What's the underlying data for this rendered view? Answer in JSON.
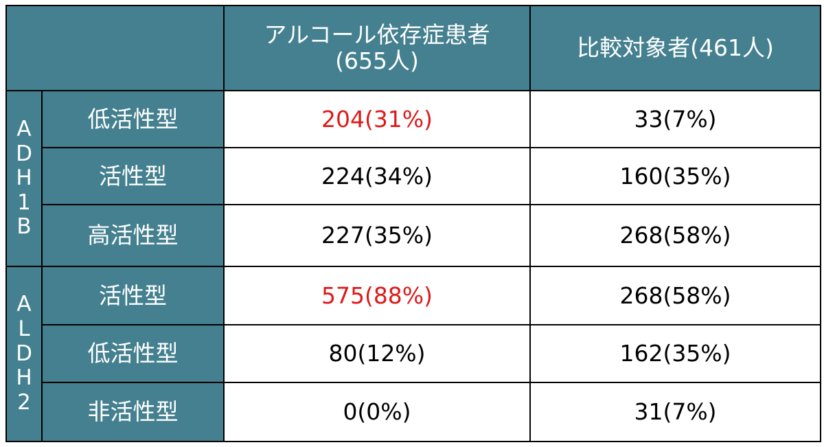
{
  "colors": {
    "header_bg": "#44808f",
    "header_text": "#ffffff",
    "highlight_text": "#dd1a1a",
    "cell_text": "#000000",
    "border": "#000000"
  },
  "chart_data": {
    "type": "table",
    "columns": [
      "",
      "アルコール依存症患者(655人)",
      "比較対象者(461人)"
    ],
    "column_lines": [
      [
        ""
      ],
      [
        "アルコール依存症患者",
        "(655人)"
      ],
      [
        "比較対象者(461人)"
      ]
    ],
    "groups": [
      {
        "name": "ADH1B",
        "letters": [
          "A",
          "D",
          "H",
          "1",
          "B"
        ],
        "rows": [
          {
            "label": "低活性型",
            "values": [
              "204(31%)",
              "33(7%)"
            ],
            "highlight": [
              true,
              false
            ]
          },
          {
            "label": "活性型",
            "values": [
              "224(34%)",
              "160(35%)"
            ],
            "highlight": [
              false,
              false
            ]
          },
          {
            "label": "高活性型",
            "values": [
              "227(35%)",
              "268(58%)"
            ],
            "highlight": [
              false,
              false
            ]
          }
        ]
      },
      {
        "name": "ALDH2",
        "letters": [
          "A",
          "L",
          "D",
          "H",
          "2"
        ],
        "rows": [
          {
            "label": "活性型",
            "values": [
              "575(88%)",
              "268(58%)"
            ],
            "highlight": [
              true,
              false
            ]
          },
          {
            "label": "低活性型",
            "values": [
              "80(12%)",
              "162(35%)"
            ],
            "highlight": [
              false,
              false
            ]
          },
          {
            "label": "非活性型",
            "values": [
              "0(0%)",
              "31(7%)"
            ],
            "highlight": [
              false,
              false
            ]
          }
        ]
      }
    ]
  }
}
